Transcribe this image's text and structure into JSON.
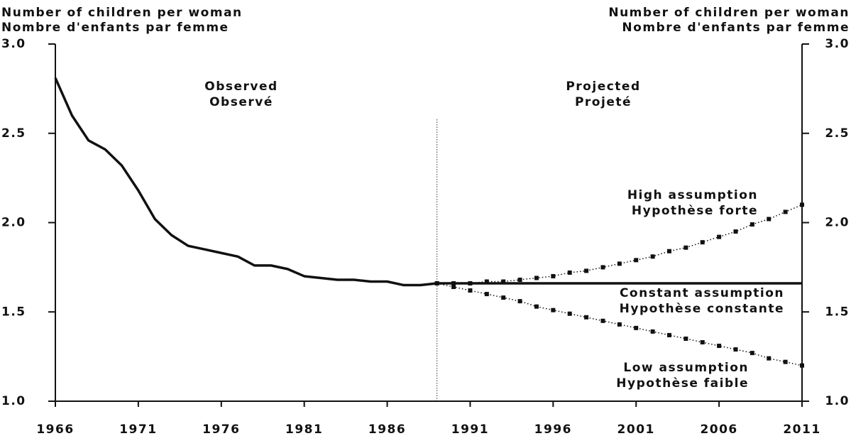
{
  "chart_data": {
    "type": "line",
    "y_axis_title": [
      "Number of children per woman",
      "Nombre d'enfants par femme"
    ],
    "y2_axis_title": [
      "Number of children per woman",
      "Nombre d'enfants par femme"
    ],
    "annotations": [
      [
        "Observed",
        "Observé"
      ],
      [
        "Projected",
        "Projeté"
      ],
      [
        "High assumption",
        "Hypothèse forte"
      ],
      [
        "Constant assumption",
        "Hypothèse constante"
      ],
      [
        "Low assumption",
        "Hypothèse faible"
      ]
    ],
    "divider_x": 1989,
    "xlim": [
      1966,
      2011
    ],
    "xticks": [
      1966,
      1971,
      1976,
      1981,
      1986,
      1991,
      1996,
      2001,
      2006,
      2011
    ],
    "ylim": [
      1.0,
      3.0
    ],
    "yticks": [
      {
        "value": 1.0,
        "label": "1.0"
      },
      {
        "value": 1.5,
        "label": "1.5"
      },
      {
        "value": 2.0,
        "label": "2.0"
      },
      {
        "value": 2.5,
        "label": "2.5"
      },
      {
        "value": 3.0,
        "label": "3.0"
      }
    ],
    "y2lim": [
      1.0,
      3.0
    ],
    "y2ticks": [
      {
        "value": 1.0,
        "label": "1.0"
      },
      {
        "value": 1.5,
        "label": "1.5"
      },
      {
        "value": 2.0,
        "label": "2.0"
      },
      {
        "value": 2.5,
        "label": "2.5"
      },
      {
        "value": 3.0,
        "label": "3.0"
      }
    ],
    "series": [
      {
        "name": "Observed",
        "color": "#111111",
        "style": "solid",
        "x": [
          1966,
          1967,
          1968,
          1969,
          1970,
          1971,
          1972,
          1973,
          1974,
          1975,
          1976,
          1977,
          1978,
          1979,
          1980,
          1981,
          1982,
          1983,
          1984,
          1985,
          1986,
          1987,
          1988,
          1989
        ],
        "values": [
          2.81,
          2.6,
          2.46,
          2.41,
          2.32,
          2.18,
          2.02,
          1.93,
          1.87,
          1.85,
          1.83,
          1.81,
          1.76,
          1.76,
          1.74,
          1.7,
          1.69,
          1.68,
          1.68,
          1.67,
          1.67,
          1.65,
          1.65,
          1.66
        ]
      },
      {
        "name": "High assumption",
        "color": "#111111",
        "style": "dotted",
        "x": [
          1989,
          1990,
          1991,
          1992,
          1993,
          1994,
          1995,
          1996,
          1997,
          1998,
          1999,
          2000,
          2001,
          2002,
          2003,
          2004,
          2005,
          2006,
          2007,
          2008,
          2009,
          2010,
          2011
        ],
        "values": [
          1.66,
          1.66,
          1.66,
          1.67,
          1.67,
          1.68,
          1.69,
          1.7,
          1.72,
          1.73,
          1.75,
          1.77,
          1.79,
          1.81,
          1.84,
          1.86,
          1.89,
          1.92,
          1.95,
          1.99,
          2.02,
          2.06,
          2.1
        ]
      },
      {
        "name": "Constant assumption",
        "color": "#111111",
        "style": "solid",
        "x": [
          1989,
          1990,
          1991,
          1992,
          1993,
          1994,
          1995,
          1996,
          1997,
          1998,
          1999,
          2000,
          2001,
          2002,
          2003,
          2004,
          2005,
          2006,
          2007,
          2008,
          2009,
          2010,
          2011
        ],
        "values": [
          1.66,
          1.66,
          1.66,
          1.66,
          1.66,
          1.66,
          1.66,
          1.66,
          1.66,
          1.66,
          1.66,
          1.66,
          1.66,
          1.66,
          1.66,
          1.66,
          1.66,
          1.66,
          1.66,
          1.66,
          1.66,
          1.66,
          1.66
        ]
      },
      {
        "name": "Low assumption",
        "color": "#111111",
        "style": "dotted",
        "x": [
          1989,
          1990,
          1991,
          1992,
          1993,
          1994,
          1995,
          1996,
          1997,
          1998,
          1999,
          2000,
          2001,
          2002,
          2003,
          2004,
          2005,
          2006,
          2007,
          2008,
          2009,
          2010,
          2011
        ],
        "values": [
          1.66,
          1.64,
          1.62,
          1.6,
          1.58,
          1.56,
          1.53,
          1.51,
          1.49,
          1.47,
          1.45,
          1.43,
          1.41,
          1.39,
          1.37,
          1.35,
          1.33,
          1.31,
          1.29,
          1.27,
          1.24,
          1.22,
          1.2
        ]
      }
    ]
  }
}
